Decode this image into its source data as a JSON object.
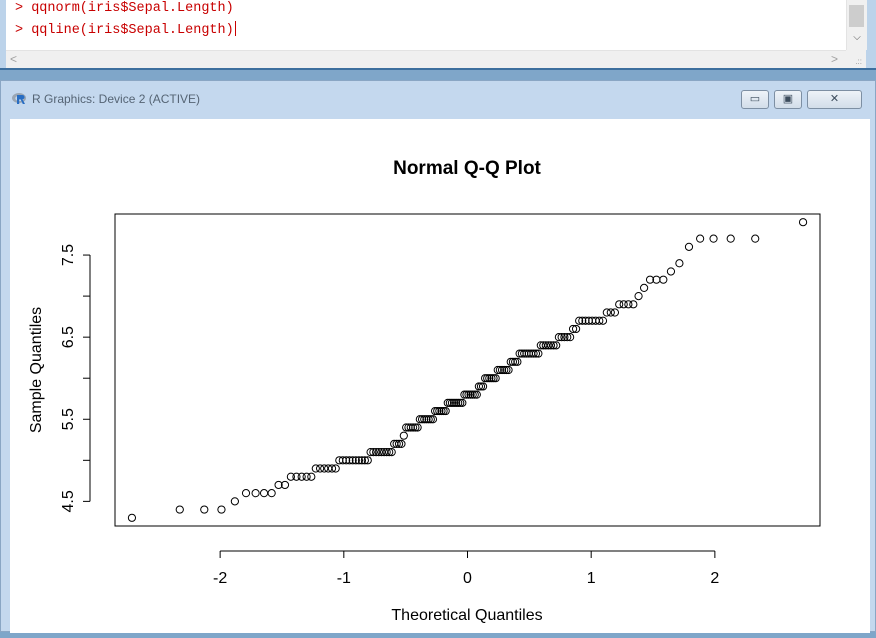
{
  "console": {
    "line1": "> qqnorm(iris$Sepal.Length)",
    "line2": "> qqline(iris$Sepal.Length)",
    "scroll_left": "<",
    "scroll_right": ">"
  },
  "graphics_window": {
    "title": "R Graphics: Device 2 (ACTIVE)",
    "app_icon": "r-logo-icon",
    "minimize_label": "▭",
    "maximize_label": "▣",
    "close_label": "✕"
  },
  "colors": {
    "console_text": "#c80000",
    "plot_background": "#ffffff",
    "points": "#000000"
  },
  "chart_data": {
    "type": "scatter",
    "title": "Normal Q-Q Plot",
    "xlabel": "Theoretical Quantiles",
    "ylabel": "Sample Quantiles",
    "xlim": [
      -2.85,
      2.85
    ],
    "ylim": [
      4.2,
      8.0
    ],
    "xticks": [
      -2,
      -1,
      0,
      1,
      2
    ],
    "yticks": [
      4.5,
      5.5,
      6.5,
      7.5
    ],
    "ytick_minor": [
      4.5,
      5.0,
      5.5,
      6.0,
      6.5,
      7.0,
      7.5
    ],
    "grid": false,
    "sample": [
      4.3,
      4.4,
      4.4,
      4.4,
      4.5,
      4.6,
      4.6,
      4.6,
      4.6,
      4.7,
      4.7,
      4.8,
      4.8,
      4.8,
      4.8,
      4.8,
      4.9,
      4.9,
      4.9,
      4.9,
      4.9,
      4.9,
      5.0,
      5.0,
      5.0,
      5.0,
      5.0,
      5.0,
      5.0,
      5.0,
      5.0,
      5.0,
      5.1,
      5.1,
      5.1,
      5.1,
      5.1,
      5.1,
      5.1,
      5.1,
      5.1,
      5.2,
      5.2,
      5.2,
      5.2,
      5.3,
      5.4,
      5.4,
      5.4,
      5.4,
      5.4,
      5.4,
      5.5,
      5.5,
      5.5,
      5.5,
      5.5,
      5.5,
      5.5,
      5.6,
      5.6,
      5.6,
      5.6,
      5.6,
      5.6,
      5.7,
      5.7,
      5.7,
      5.7,
      5.7,
      5.7,
      5.7,
      5.7,
      5.8,
      5.8,
      5.8,
      5.8,
      5.8,
      5.8,
      5.8,
      5.9,
      5.9,
      5.9,
      6.0,
      6.0,
      6.0,
      6.0,
      6.0,
      6.0,
      6.1,
      6.1,
      6.1,
      6.1,
      6.1,
      6.1,
      6.2,
      6.2,
      6.2,
      6.2,
      6.3,
      6.3,
      6.3,
      6.3,
      6.3,
      6.3,
      6.3,
      6.3,
      6.3,
      6.4,
      6.4,
      6.4,
      6.4,
      6.4,
      6.4,
      6.4,
      6.5,
      6.5,
      6.5,
      6.5,
      6.5,
      6.6,
      6.6,
      6.7,
      6.7,
      6.7,
      6.7,
      6.7,
      6.7,
      6.7,
      6.7,
      6.8,
      6.8,
      6.8,
      6.9,
      6.9,
      6.9,
      6.9,
      7.0,
      7.1,
      7.2,
      7.2,
      7.2,
      7.3,
      7.4,
      7.6,
      7.7,
      7.7,
      7.7,
      7.7,
      7.9
    ]
  }
}
